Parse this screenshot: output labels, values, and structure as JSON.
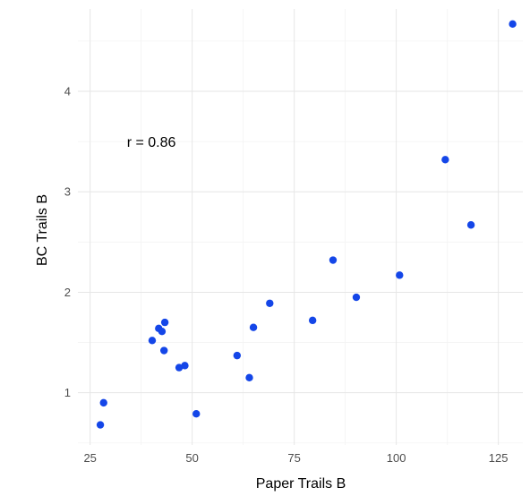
{
  "chart_data": {
    "type": "scatter",
    "title": "",
    "xlabel": "Paper Trails B",
    "ylabel": "BC Trails B",
    "xlim": [
      22,
      131
    ],
    "ylim": [
      0.48,
      4.82
    ],
    "x_ticks": [
      25,
      50,
      75,
      100,
      125
    ],
    "y_ticks": [
      1,
      2,
      3,
      4
    ],
    "x_tick_labels": [
      "25",
      "50",
      "75",
      "100",
      "125"
    ],
    "y_tick_labels": [
      "1",
      "2",
      "3",
      "4"
    ],
    "grid": true,
    "legend": "none",
    "annotation": {
      "text": "r =  0.86",
      "x": 34,
      "y": 3.5
    },
    "point_color": "#1446E8",
    "points": [
      {
        "x": 27.5,
        "y": 0.68
      },
      {
        "x": 28.3,
        "y": 0.9
      },
      {
        "x": 40.2,
        "y": 1.52
      },
      {
        "x": 41.8,
        "y": 1.64
      },
      {
        "x": 42.6,
        "y": 1.61
      },
      {
        "x": 43.1,
        "y": 1.42
      },
      {
        "x": 43.3,
        "y": 1.7
      },
      {
        "x": 46.8,
        "y": 1.25
      },
      {
        "x": 48.2,
        "y": 1.27
      },
      {
        "x": 51.0,
        "y": 0.79
      },
      {
        "x": 61.0,
        "y": 1.37
      },
      {
        "x": 64.0,
        "y": 1.15
      },
      {
        "x": 65.0,
        "y": 1.65
      },
      {
        "x": 69.0,
        "y": 1.89
      },
      {
        "x": 79.5,
        "y": 1.72
      },
      {
        "x": 84.5,
        "y": 2.32
      },
      {
        "x": 90.2,
        "y": 1.95
      },
      {
        "x": 100.8,
        "y": 2.17
      },
      {
        "x": 112.0,
        "y": 3.32
      },
      {
        "x": 118.3,
        "y": 2.67
      },
      {
        "x": 128.5,
        "y": 4.67
      }
    ]
  }
}
